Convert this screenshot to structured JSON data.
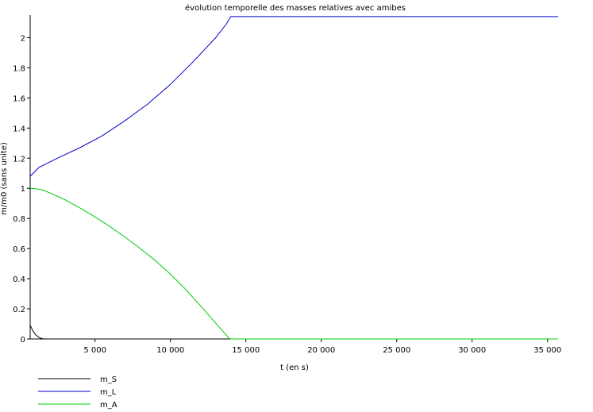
{
  "chart_data": {
    "type": "line",
    "title": "évolution temporelle des masses relatives avec amibes",
    "xlabel": "t (en s)",
    "ylabel": "m/m0 (sans unite)",
    "xlim": [
      700,
      35700
    ],
    "ylim": [
      0,
      2.15
    ],
    "x_ticks": [
      5000,
      10000,
      15000,
      20000,
      25000,
      30000,
      35000
    ],
    "x_tick_labels": [
      "5 000",
      "10 000",
      "15 000",
      "20 000",
      "25 000",
      "30 000",
      "35 000"
    ],
    "y_ticks": [
      0,
      0.2,
      0.4,
      0.6,
      0.8,
      1,
      1.2,
      1.4,
      1.6,
      1.8,
      2
    ],
    "y_tick_labels": [
      "0",
      "0.2",
      "0.4",
      "0.6",
      "0.8",
      "1",
      "1.2",
      "1.4",
      "1.6",
      "1.8",
      "2"
    ],
    "grid": false,
    "legend_position": "bottom-left",
    "series": [
      {
        "name": "m_S",
        "color": "#000000",
        "x": [
          700,
          800,
          900,
          1000,
          1100,
          1200,
          1300,
          1400,
          1500,
          1600,
          1700
        ],
        "y": [
          0.09,
          0.07,
          0.05,
          0.036,
          0.025,
          0.016,
          0.01,
          0.005,
          0.002,
          0.001,
          0
        ]
      },
      {
        "name": "m_L",
        "color": "#0000cc",
        "x": [
          700,
          1000,
          1300,
          1700,
          2500,
          4000,
          5500,
          7000,
          8500,
          10000,
          11500,
          13000,
          13700,
          14000,
          35700
        ],
        "y": [
          1.08,
          1.11,
          1.14,
          1.16,
          1.2,
          1.27,
          1.35,
          1.45,
          1.56,
          1.69,
          1.84,
          2.0,
          2.09,
          2.14,
          2.14
        ]
      },
      {
        "name": "m_A",
        "color": "#00cc00",
        "x": [
          700,
          1000,
          1500,
          2000,
          3000,
          4000,
          5000,
          6000,
          7000,
          8000,
          9000,
          10000,
          11000,
          12000,
          13000,
          13900,
          14000,
          35700
        ],
        "y": [
          0.999,
          0.998,
          0.99,
          0.97,
          0.925,
          0.87,
          0.81,
          0.745,
          0.675,
          0.6,
          0.52,
          0.43,
          0.33,
          0.22,
          0.105,
          0.003,
          0,
          0
        ]
      }
    ]
  }
}
